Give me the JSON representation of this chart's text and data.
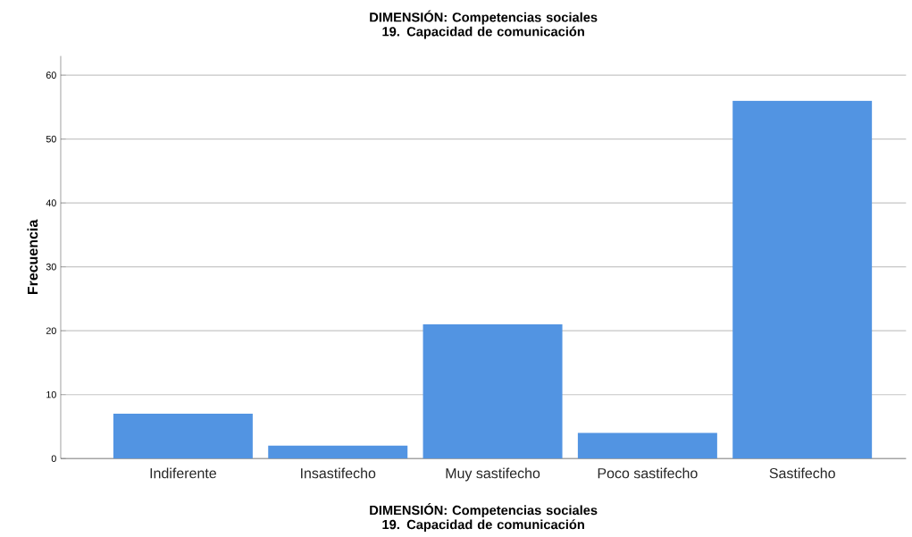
{
  "chart_data": {
    "type": "bar",
    "title": "DIMENSIÓN: Competencias sociales 19. Capacidad de comunicación",
    "xlabel": "DIMENSIÓN: Competencias sociales 19. Capacidad de comunicación",
    "ylabel": "Frecuencia",
    "categories": [
      "Indiferente",
      "Insastifecho",
      "Muy sastifecho",
      "Poco sastifecho",
      "Sastifecho"
    ],
    "values": [
      7,
      2,
      21,
      4,
      56
    ],
    "color": "#5294e2",
    "ylim": [
      0,
      63
    ],
    "yticks": [
      0,
      10,
      20,
      30,
      40,
      50,
      60
    ],
    "grid": "y"
  }
}
